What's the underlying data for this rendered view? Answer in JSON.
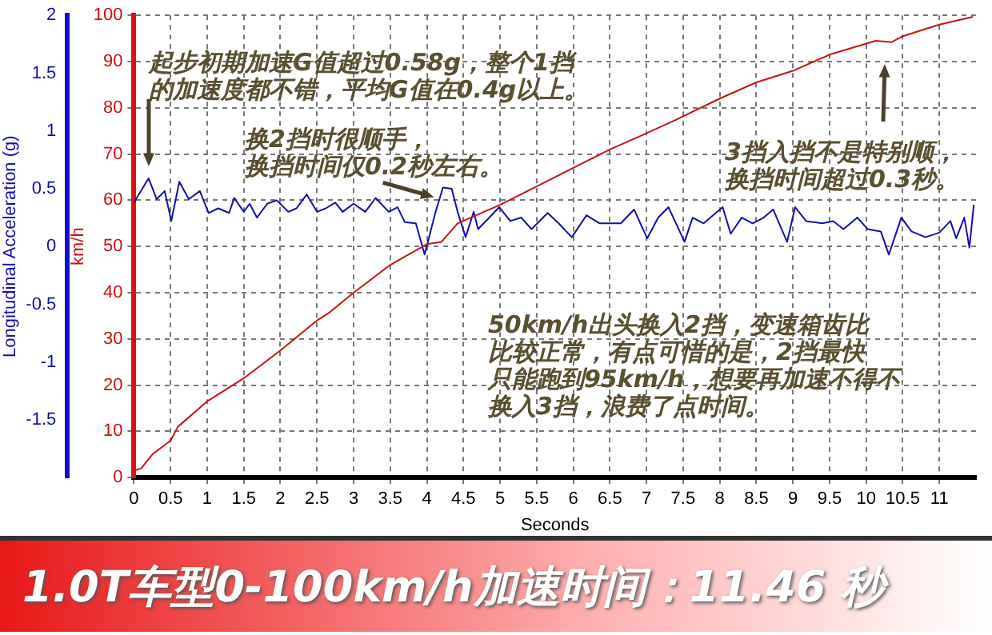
{
  "chart_data": {
    "type": "line",
    "title": "1.0T车型0-100km/h加速时间：11.46 秒",
    "xlabel": "Seconds",
    "ylabel": "km/h",
    "y2label": "Longitudinal Acceleration (g)",
    "xlim": [
      0,
      11.5
    ],
    "xticks": [
      0,
      0.5,
      1,
      1.5,
      2,
      2.5,
      3,
      3.5,
      4,
      4.5,
      5,
      5.5,
      6,
      6.5,
      7,
      7.5,
      8,
      8.5,
      9,
      9.5,
      10,
      10.5,
      11
    ],
    "ylim": [
      0,
      100
    ],
    "yticks": [
      0,
      10,
      20,
      30,
      40,
      50,
      60,
      70,
      80,
      90,
      100
    ],
    "y2lim": [
      -2,
      2
    ],
    "y2ticks": [
      -1.5,
      -1,
      -0.5,
      0,
      0.5,
      1,
      1.5,
      2
    ],
    "grid": true,
    "legend": false,
    "marker": "none",
    "line_style": "solid",
    "series": [
      {
        "color": "#cc1111",
        "x": [
          0,
          0.1,
          0.25,
          0.5,
          0.6,
          1,
          1.5,
          2,
          2.5,
          2.66,
          3,
          3.5,
          4,
          4.2,
          4.42,
          5,
          5.5,
          6,
          6.5,
          7,
          7.4,
          8,
          8.5,
          9,
          9.5,
          10.13,
          10.35,
          10.5,
          11,
          11.46
        ],
        "values": [
          1.5,
          2,
          5,
          8,
          11,
          16.5,
          21.5,
          27.5,
          34,
          35.6,
          40,
          46,
          50.5,
          51,
          55,
          59,
          63,
          67,
          71,
          74.5,
          77.4,
          82,
          85.5,
          88,
          91.5,
          94.5,
          94.2,
          95.5,
          98,
          99.7
        ]
      },
      {
        "color": "#1111aa",
        "axis": "y2",
        "x": [
          0,
          0.2,
          0.31,
          0.42,
          0.51,
          0.62,
          0.75,
          0.9,
          1.02,
          1.15,
          1.3,
          1.37,
          1.5,
          1.58,
          1.68,
          1.82,
          1.95,
          2.11,
          2.22,
          2.36,
          2.5,
          2.62,
          2.75,
          2.85,
          3.0,
          3.16,
          3.3,
          3.48,
          3.6,
          3.7,
          3.85,
          3.97,
          4.12,
          4.22,
          4.34,
          4.42,
          4.53,
          4.64,
          4.7,
          4.99,
          5.14,
          5.29,
          5.43,
          5.65,
          5.8,
          5.98,
          6.18,
          6.36,
          6.5,
          6.65,
          6.83,
          7.01,
          7.16,
          7.3,
          7.52,
          7.63,
          7.78,
          8.04,
          8.15,
          8.3,
          8.45,
          8.6,
          8.73,
          8.92,
          9.03,
          9.18,
          9.4,
          9.55,
          9.69,
          9.88,
          10.02,
          10.2,
          10.31,
          10.48,
          10.62,
          10.81,
          11.0,
          11.15,
          11.23,
          11.34,
          11.41,
          11.47
        ],
        "values": [
          0.38,
          0.59,
          0.41,
          0.48,
          0.22,
          0.56,
          0.41,
          0.48,
          0.29,
          0.33,
          0.29,
          0.42,
          0.3,
          0.37,
          0.25,
          0.37,
          0.4,
          0.3,
          0.33,
          0.45,
          0.3,
          0.33,
          0.38,
          0.3,
          0.37,
          0.3,
          0.42,
          0.3,
          0.34,
          0.21,
          0.2,
          -0.07,
          0.3,
          0.51,
          0.5,
          0.3,
          0.08,
          0.3,
          0.15,
          0.34,
          0.22,
          0.25,
          0.15,
          0.29,
          0.2,
          0.08,
          0.27,
          0.2,
          0.2,
          0.2,
          0.32,
          0.07,
          0.25,
          0.34,
          0.04,
          0.25,
          0.2,
          0.34,
          0.11,
          0.25,
          0.2,
          0.25,
          0.32,
          0.04,
          0.34,
          0.22,
          0.2,
          0.22,
          0.15,
          0.25,
          0.15,
          0.13,
          -0.07,
          0.25,
          0.13,
          0.08,
          0.12,
          0.22,
          0.07,
          0.25,
          -0.01,
          0.36
        ]
      }
    ],
    "annotations": [
      "起步初期加速G值超过0.58g，整个1挡的加速度都不错，平均G值在0.4g以上。",
      {
        "text": "换2挡时很顺手，换挡时间仅0.2秒左右。",
        "x": 4.1,
        "y": 60
      },
      "3挡入挡不是特别顺，换挡时间超过0.3秒。",
      "50km/h出头换入2挡，变速箱齿比比较正常，有点可惜的是，2挡最快只能跑到95km/h，想要再加速不得不换入3挡，浪费了点时间。"
    ]
  }
}
